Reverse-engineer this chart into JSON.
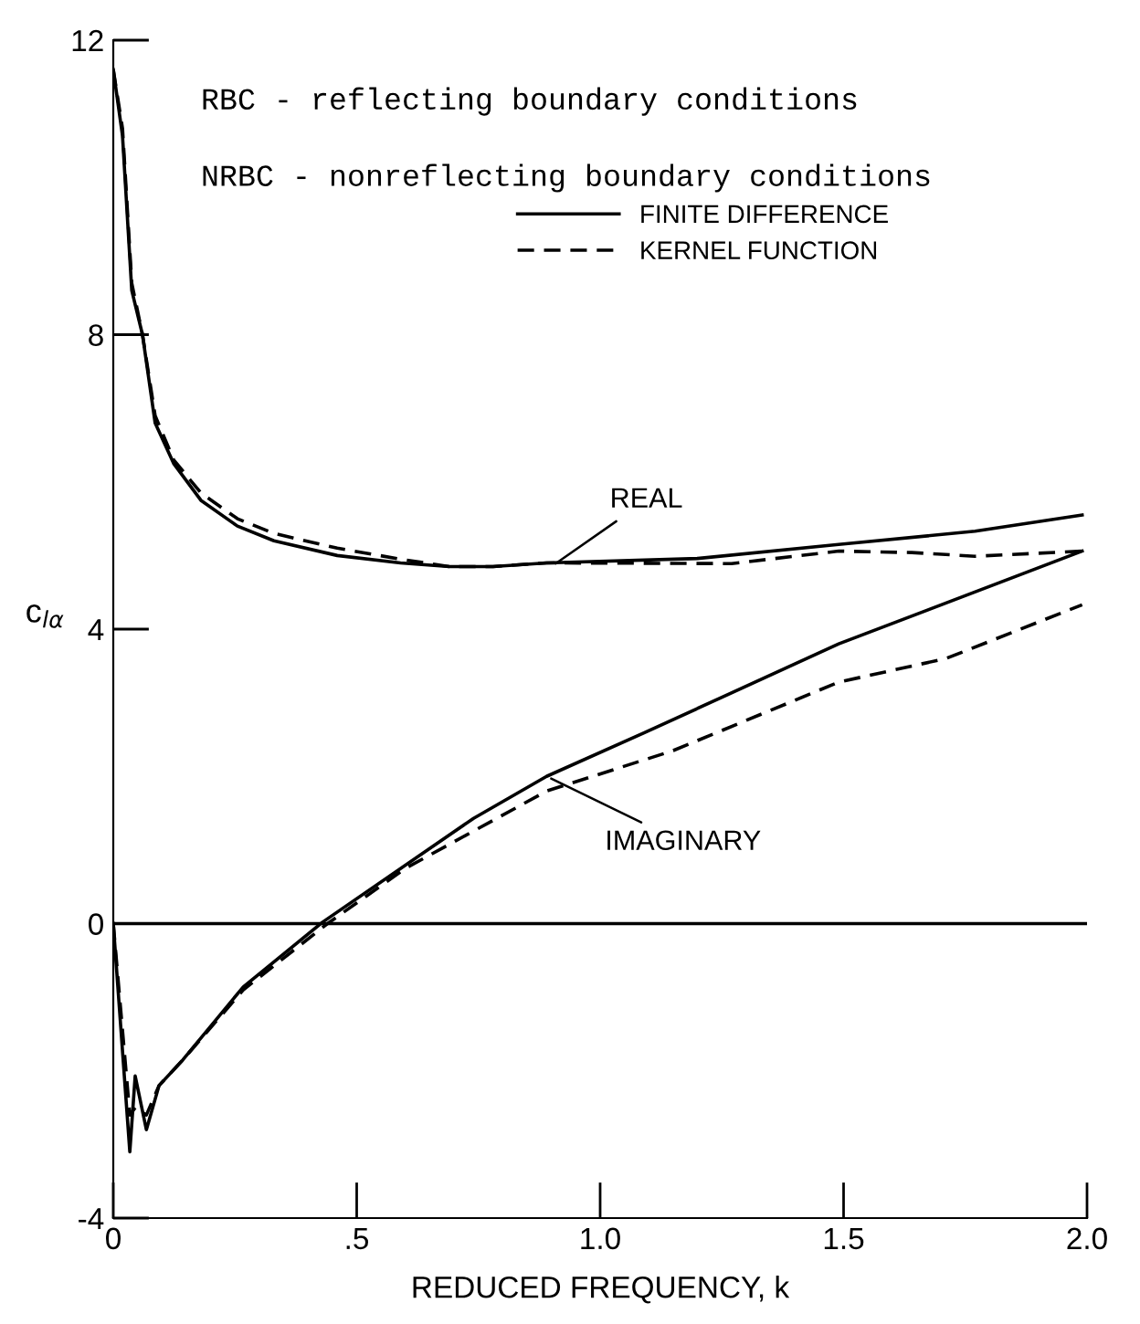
{
  "chart_data": {
    "type": "line",
    "xlabel": "REDUCED FREQUENCY, k",
    "ylabel": "c$_{lα}$",
    "xlim": [
      0,
      2.0
    ],
    "ylim": [
      -4,
      12
    ],
    "xticks": [
      0,
      {
        "value": 0.5,
        "label": ".5"
      },
      {
        "value": 1.0,
        "label": "1.0"
      },
      {
        "value": 1.5,
        "label": "1.5"
      },
      {
        "value": 2.0,
        "label": "2.0"
      }
    ],
    "yticks": [
      -4,
      0,
      4,
      8,
      12
    ],
    "grid": false,
    "legend": "top right",
    "marker": "none",
    "ref_lines": [
      {
        "axis": "y",
        "value": 0,
        "color": "#000000",
        "line_style": "solid"
      }
    ],
    "annotations": [
      "RBC - reflecting boundary conditions",
      "NRBC - nonreflecting boundary conditions",
      {
        "text": "REAL",
        "x": 0.9,
        "y": 4.85
      },
      {
        "text": "IMAGINARY",
        "x": 0.89,
        "y": 2.0
      }
    ],
    "series": [
      {
        "name": "FINITE DIFFERENCE",
        "color": "#000000",
        "line_style": "solid",
        "x": [
          0,
          0.019,
          0.038,
          0.06,
          0.086,
          0.124,
          0.18,
          0.255,
          0.33,
          0.46,
          0.59,
          0.69,
          0.78,
          0.89,
          1.2,
          1.49,
          1.77,
          1.99
        ],
        "values": [
          11.6,
          10.7,
          8.6,
          8.0,
          6.8,
          6.25,
          5.75,
          5.4,
          5.2,
          5.0,
          4.9,
          4.85,
          4.85,
          4.9,
          4.96,
          5.15,
          5.33,
          5.55
        ]
      },
      {
        "name": "KERNEL FUNCTION",
        "color": "#000000",
        "line_style": "dashed",
        "x": [
          0,
          0.019,
          0.038,
          0.06,
          0.086,
          0.124,
          0.18,
          0.255,
          0.33,
          0.46,
          0.59,
          0.69,
          0.78,
          0.89,
          1.27,
          1.49,
          1.64,
          1.77,
          1.99
        ],
        "values": [
          11.6,
          10.8,
          8.7,
          8.0,
          6.9,
          6.3,
          5.85,
          5.5,
          5.3,
          5.1,
          4.95,
          4.85,
          4.85,
          4.9,
          4.89,
          5.06,
          5.04,
          4.99,
          5.06
        ]
      },
      {
        "color": "#000000",
        "line_style": "solid",
        "x": [
          0,
          0.034,
          0.045,
          0.068,
          0.094,
          0.143,
          0.267,
          0.43,
          0.74,
          0.89,
          1.09,
          1.49,
          1.99
        ],
        "values": [
          0,
          -3.1,
          -2.07,
          -2.8,
          -2.2,
          -1.85,
          -0.86,
          0.02,
          1.43,
          2.0,
          2.59,
          3.8,
          5.06
        ]
      },
      {
        "color": "#000000",
        "line_style": "dashed",
        "x": [
          0,
          0.034,
          0.045,
          0.068,
          0.094,
          0.143,
          0.267,
          0.44,
          0.6,
          0.89,
          1.15,
          1.49,
          1.71,
          1.99
        ],
        "values": [
          0,
          -2.6,
          -2.5,
          -2.6,
          -2.2,
          -1.85,
          -0.9,
          0.0,
          0.75,
          1.8,
          2.35,
          3.28,
          3.6,
          4.33
        ]
      }
    ]
  }
}
